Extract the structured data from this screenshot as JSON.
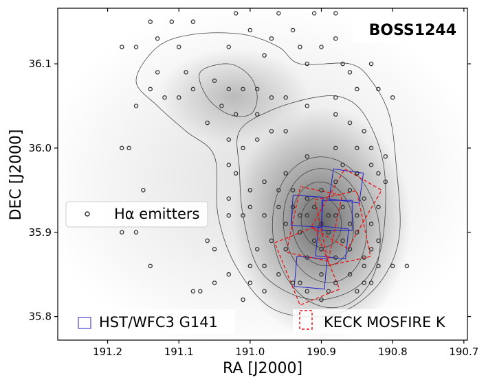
{
  "chart_data": {
    "type": "scatter",
    "title": "BOSS1244",
    "xlabel": "RA [J2000]",
    "ylabel": "DEC [J2000]",
    "xlim": [
      191.27,
      190.695
    ],
    "ylim": [
      35.772,
      36.166
    ],
    "x_ticks": [
      191.2,
      191.1,
      191.0,
      190.9,
      190.8,
      190.7
    ],
    "x_tick_labels": [
      "191.2",
      "191.1",
      "191.0",
      "190.9",
      "190.8",
      "190.7"
    ],
    "y_ticks": [
      35.8,
      35.9,
      36.0,
      36.1
    ],
    "y_tick_labels": [
      "35.8",
      "35.9",
      "36.0",
      "36.1"
    ],
    "grid": false,
    "legends": [
      {
        "label": "Hα emitters",
        "marker": "open-circle",
        "placement": "center-left"
      },
      {
        "label": "HST/WFC3 G141",
        "marker": "blue-square",
        "placement": "bottom-left"
      },
      {
        "label": "KECK MOSFIRE K",
        "marker": "red-dashed-square",
        "placement": "bottom-right"
      }
    ],
    "colors": {
      "emitters": "#333333",
      "hst": "#1f1fcc",
      "keck": "#ee1111",
      "contour": "#444444"
    },
    "density_peak": [
      190.9,
      35.91
    ],
    "contour_levels": [
      {
        "cx": 190.9,
        "cy": 35.912,
        "rx": 0.028,
        "ry": 0.03
      },
      {
        "cx": 190.898,
        "cy": 35.91,
        "rx": 0.043,
        "ry": 0.05
      },
      {
        "cx": 190.895,
        "cy": 35.908,
        "rx": 0.058,
        "ry": 0.068
      },
      {
        "cx": 190.893,
        "cy": 35.9,
        "rx": 0.075,
        "ry": 0.09
      }
    ],
    "contour_outer": [
      [
        191.13,
        36.12
      ],
      [
        191.08,
        36.135
      ],
      [
        191.01,
        36.135
      ],
      [
        190.96,
        36.12
      ],
      [
        190.93,
        36.1
      ],
      [
        190.86,
        36.1
      ],
      [
        190.83,
        36.08
      ],
      [
        190.805,
        36.04
      ],
      [
        190.795,
        35.98
      ],
      [
        190.79,
        35.9
      ],
      [
        190.81,
        35.85
      ],
      [
        190.85,
        35.815
      ],
      [
        190.9,
        35.8
      ],
      [
        190.97,
        35.81
      ],
      [
        191.02,
        35.86
      ],
      [
        191.045,
        35.92
      ],
      [
        191.05,
        35.99
      ],
      [
        191.09,
        36.02
      ],
      [
        191.13,
        36.05
      ],
      [
        191.16,
        36.08
      ]
    ],
    "contour_northwest": [
      [
        191.07,
        36.09
      ],
      [
        191.03,
        36.1
      ],
      [
        191.0,
        36.085
      ],
      [
        190.99,
        36.06
      ],
      [
        191.0,
        36.04
      ],
      [
        191.03,
        36.04
      ],
      [
        191.06,
        36.06
      ]
    ],
    "contour_mid": [
      [
        191.015,
        36.02
      ],
      [
        190.97,
        36.045
      ],
      [
        190.91,
        36.06
      ],
      [
        190.87,
        36.06
      ],
      [
        190.84,
        36.04
      ],
      [
        190.815,
        35.99
      ],
      [
        190.81,
        35.93
      ],
      [
        190.82,
        35.87
      ],
      [
        190.85,
        35.835
      ],
      [
        190.9,
        35.82
      ],
      [
        190.95,
        35.83
      ],
      [
        190.99,
        35.86
      ],
      [
        191.01,
        35.92
      ],
      [
        191.015,
        35.975
      ]
    ],
    "hst_pointings": [
      {
        "ra": 190.865,
        "dec": 35.955,
        "angle": 8
      },
      {
        "ra": 190.92,
        "dec": 35.925,
        "angle": 4
      },
      {
        "ra": 190.878,
        "dec": 35.92,
        "angle": 0
      },
      {
        "ra": 190.885,
        "dec": 35.888,
        "angle": 6
      },
      {
        "ra": 190.915,
        "dec": 35.852,
        "angle": 5
      }
    ],
    "keck_pointings": [
      {
        "ra": 190.865,
        "dec": 35.928,
        "angle": 30
      },
      {
        "ra": 190.87,
        "dec": 35.905,
        "angle": -12
      },
      {
        "ra": 190.91,
        "dec": 35.91,
        "angle": 12
      },
      {
        "ra": 190.92,
        "dec": 35.86,
        "angle": -22
      }
    ],
    "points": [
      [
        191.14,
        36.15
      ],
      [
        191.11,
        36.15
      ],
      [
        191.08,
        36.15
      ],
      [
        190.96,
        36.16
      ],
      [
        190.91,
        36.16
      ],
      [
        190.88,
        36.16
      ],
      [
        191.02,
        36.16
      ],
      [
        191.0,
        36.14
      ],
      [
        190.94,
        36.14
      ],
      [
        190.88,
        36.13
      ],
      [
        191.13,
        36.13
      ],
      [
        191.1,
        36.12
      ],
      [
        190.97,
        36.13
      ],
      [
        190.93,
        36.12
      ],
      [
        190.9,
        36.12
      ],
      [
        191.18,
        36.12
      ],
      [
        191.16,
        36.12
      ],
      [
        191.03,
        36.12
      ],
      [
        190.98,
        36.11
      ],
      [
        190.92,
        36.1
      ],
      [
        190.87,
        36.1
      ],
      [
        190.86,
        36.09
      ],
      [
        190.83,
        36.1
      ],
      [
        191.09,
        36.09
      ],
      [
        191.13,
        36.09
      ],
      [
        191.08,
        36.07
      ],
      [
        191.05,
        36.08
      ],
      [
        191.03,
        36.07
      ],
      [
        191.01,
        36.07
      ],
      [
        190.99,
        36.07
      ],
      [
        191.14,
        36.07
      ],
      [
        191.12,
        36.06
      ],
      [
        191.1,
        36.06
      ],
      [
        190.97,
        36.06
      ],
      [
        190.95,
        36.06
      ],
      [
        190.92,
        36.05
      ],
      [
        190.88,
        36.06
      ],
      [
        190.85,
        36.07
      ],
      [
        190.82,
        36.07
      ],
      [
        190.8,
        36.06
      ],
      [
        191.16,
        36.05
      ],
      [
        191.04,
        36.05
      ],
      [
        191.02,
        36.04
      ],
      [
        190.99,
        36.04
      ],
      [
        190.88,
        36.04
      ],
      [
        190.86,
        36.03
      ],
      [
        190.84,
        36.02
      ],
      [
        191.06,
        36.03
      ],
      [
        190.97,
        36.02
      ],
      [
        190.95,
        36.02
      ],
      [
        190.85,
        36.0
      ],
      [
        190.83,
        36.0
      ],
      [
        190.81,
        35.99
      ],
      [
        190.88,
        36.0
      ],
      [
        191.18,
        36.0
      ],
      [
        191.17,
        36.0
      ],
      [
        191.03,
        36.01
      ],
      [
        191.01,
        36.0
      ],
      [
        190.99,
        36.01
      ],
      [
        190.92,
        35.99
      ],
      [
        191.03,
        35.98
      ],
      [
        190.95,
        35.97
      ],
      [
        190.87,
        35.98
      ],
      [
        190.85,
        35.97
      ],
      [
        190.83,
        35.98
      ],
      [
        190.82,
        35.97
      ],
      [
        190.81,
        35.96
      ],
      [
        191.02,
        35.97
      ],
      [
        191.0,
        35.95
      ],
      [
        190.98,
        35.96
      ],
      [
        190.96,
        35.95
      ],
      [
        190.94,
        35.95
      ],
      [
        190.92,
        35.94
      ],
      [
        190.9,
        35.95
      ],
      [
        190.88,
        35.96
      ],
      [
        190.86,
        35.95
      ],
      [
        190.84,
        35.94
      ],
      [
        190.82,
        35.93
      ],
      [
        190.93,
        35.92
      ],
      [
        190.91,
        35.93
      ],
      [
        190.89,
        35.92
      ],
      [
        190.87,
        35.93
      ],
      [
        190.85,
        35.92
      ],
      [
        190.83,
        35.91
      ],
      [
        190.95,
        35.91
      ],
      [
        190.93,
        35.9
      ],
      [
        190.91,
        35.89
      ],
      [
        190.89,
        35.9
      ],
      [
        190.87,
        35.89
      ],
      [
        190.85,
        35.9
      ],
      [
        190.97,
        35.89
      ],
      [
        190.95,
        35.88
      ],
      [
        190.92,
        35.87
      ],
      [
        190.9,
        35.88
      ],
      [
        190.88,
        35.87
      ],
      [
        190.86,
        35.88
      ],
      [
        191.15,
        35.95
      ],
      [
        191.03,
        35.94
      ],
      [
        191.0,
        35.93
      ],
      [
        191.01,
        35.92
      ],
      [
        191.03,
        35.92
      ],
      [
        191.18,
        35.9
      ],
      [
        191.16,
        35.9
      ],
      [
        190.99,
        35.88
      ],
      [
        191.06,
        35.89
      ],
      [
        191.05,
        35.88
      ],
      [
        190.84,
        35.87
      ],
      [
        190.82,
        35.86
      ],
      [
        190.8,
        35.86
      ],
      [
        190.78,
        35.86
      ],
      [
        191.0,
        35.86
      ],
      [
        190.98,
        35.86
      ],
      [
        190.96,
        35.85
      ],
      [
        190.93,
        35.84
      ],
      [
        190.9,
        35.85
      ],
      [
        190.88,
        35.84
      ],
      [
        190.86,
        35.85
      ],
      [
        190.84,
        35.84
      ],
      [
        191.14,
        35.86
      ],
      [
        191.03,
        35.85
      ],
      [
        191.05,
        35.84
      ],
      [
        191.0,
        35.84
      ],
      [
        190.98,
        35.83
      ],
      [
        191.07,
        35.83
      ],
      [
        191.08,
        35.83
      ],
      [
        191.01,
        35.82
      ],
      [
        190.94,
        35.84
      ],
      [
        190.92,
        35.83
      ],
      [
        190.9,
        35.82
      ],
      [
        190.89,
        35.83
      ],
      [
        190.85,
        35.83
      ],
      [
        190.83,
        35.84
      ],
      [
        190.84,
        35.86
      ],
      [
        190.83,
        35.88
      ],
      [
        190.82,
        35.89
      ],
      [
        190.86,
        35.91
      ],
      [
        190.88,
        35.92
      ],
      [
        190.9,
        35.91
      ],
      [
        190.92,
        35.92
      ],
      [
        190.94,
        35.93
      ],
      [
        190.96,
        35.93
      ],
      [
        190.98,
        35.92
      ]
    ]
  }
}
